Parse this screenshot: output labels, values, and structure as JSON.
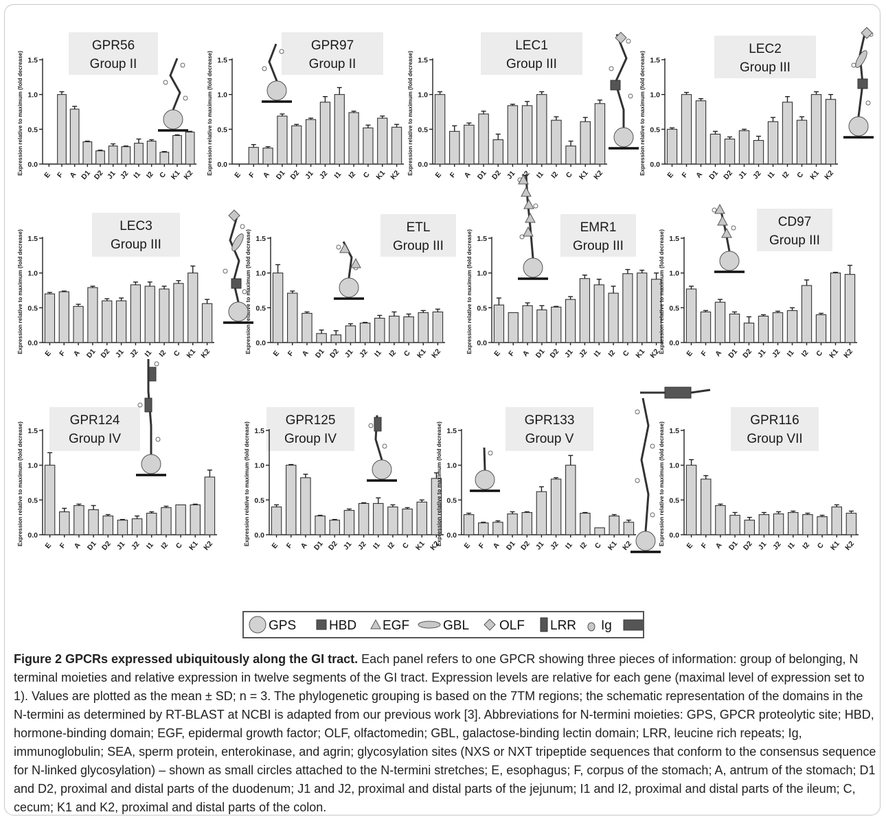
{
  "chart_data": [
    {
      "type": "bar",
      "title": "GPR56",
      "subtitle": "Group II",
      "categories": [
        "E",
        "F",
        "A",
        "D1",
        "D2",
        "J1",
        "J2",
        "I1",
        "I2",
        "C",
        "K1",
        "K2"
      ],
      "values": [
        0.0,
        1.0,
        0.79,
        0.32,
        0.19,
        0.26,
        0.25,
        0.3,
        0.33,
        0.17,
        0.41,
        0.46
      ],
      "errors": [
        0,
        0.04,
        0.04,
        0.01,
        0.01,
        0.03,
        0.01,
        0.06,
        0.02,
        0.01,
        0.01,
        0.01
      ],
      "ylabel": "Expression relative to maximum (fold decrease)",
      "ylim": [
        0,
        1.5
      ],
      "yticks": [
        "0.0",
        "0.5",
        "1.0",
        "1.5"
      ]
    },
    {
      "type": "bar",
      "title": "GPR97",
      "subtitle": "Group II",
      "categories": [
        "E",
        "F",
        "A",
        "D1",
        "D2",
        "J1",
        "J2",
        "I1",
        "I2",
        "C",
        "K1",
        "K2"
      ],
      "values": [
        0.0,
        0.24,
        0.23,
        0.69,
        0.55,
        0.64,
        0.89,
        1.0,
        0.74,
        0.52,
        0.66,
        0.53
      ],
      "errors": [
        0,
        0.04,
        0.02,
        0.03,
        0.02,
        0.02,
        0.08,
        0.1,
        0.02,
        0.04,
        0.03,
        0.04
      ],
      "ylabel": "Expression relative to maximum (fold decrease)",
      "ylim": [
        0,
        1.5
      ],
      "yticks": [
        "0.0",
        "0.5",
        "1.0",
        "1.5"
      ]
    },
    {
      "type": "bar",
      "title": "LEC1",
      "subtitle": "Group III",
      "categories": [
        "E",
        "F",
        "A",
        "D1",
        "D2",
        "J1",
        "J2",
        "I1",
        "I2",
        "C",
        "K1",
        "K2"
      ],
      "values": [
        1.0,
        0.47,
        0.56,
        0.72,
        0.35,
        0.84,
        0.84,
        1.0,
        0.63,
        0.26,
        0.61,
        0.87
      ],
      "errors": [
        0.04,
        0.08,
        0.03,
        0.04,
        0.08,
        0.02,
        0.06,
        0.04,
        0.05,
        0.07,
        0.06,
        0.05
      ],
      "ylabel": "Expression relative to maximum (fold decrease)",
      "ylim": [
        0,
        1.5
      ],
      "yticks": [
        "0.0",
        "0.5",
        "1.0",
        "1.5"
      ]
    },
    {
      "type": "bar",
      "title": "LEC2",
      "subtitle": "Group III",
      "categories": [
        "E",
        "F",
        "A",
        "D1",
        "D2",
        "J1",
        "J2",
        "I1",
        "I2",
        "C",
        "K1",
        "K2"
      ],
      "values": [
        0.5,
        1.0,
        0.91,
        0.43,
        0.36,
        0.48,
        0.34,
        0.61,
        0.89,
        0.63,
        1.0,
        0.93
      ],
      "errors": [
        0.02,
        0.03,
        0.03,
        0.04,
        0.03,
        0.02,
        0.06,
        0.06,
        0.08,
        0.05,
        0.04,
        0.07
      ],
      "ylabel": "Expression relative to maximum (fold decrease)",
      "ylim": [
        0,
        1.5
      ],
      "yticks": [
        "0.0",
        "0.5",
        "1.0",
        "1.5"
      ]
    },
    {
      "type": "bar",
      "title": "LEC3",
      "subtitle": "Group III",
      "categories": [
        "E",
        "F",
        "A",
        "D1",
        "D2",
        "J1",
        "J2",
        "I1",
        "I2",
        "C",
        "K1",
        "K2"
      ],
      "values": [
        0.7,
        0.73,
        0.52,
        0.79,
        0.6,
        0.6,
        0.83,
        0.81,
        0.77,
        0.85,
        1.0,
        0.56
      ],
      "errors": [
        0.02,
        0.01,
        0.03,
        0.02,
        0.03,
        0.04,
        0.04,
        0.06,
        0.04,
        0.04,
        0.1,
        0.06
      ],
      "ylabel": "Expression relative to maximum (fold decrease)",
      "ylim": [
        0,
        1.5
      ],
      "yticks": [
        "0.0",
        "0.5",
        "1.0",
        "1.5"
      ]
    },
    {
      "type": "bar",
      "title": "ETL",
      "subtitle": "Group III",
      "categories": [
        "E",
        "F",
        "A",
        "D1",
        "D2",
        "J1",
        "J2",
        "I1",
        "I2",
        "C",
        "K1",
        "K2"
      ],
      "values": [
        1.0,
        0.71,
        0.42,
        0.13,
        0.11,
        0.24,
        0.28,
        0.35,
        0.38,
        0.37,
        0.43,
        0.44
      ],
      "errors": [
        0.12,
        0.03,
        0.02,
        0.05,
        0.06,
        0.03,
        0.01,
        0.04,
        0.06,
        0.04,
        0.03,
        0.04
      ],
      "ylabel": "Expression relative to maximum (fold decrease)",
      "ylim": [
        0,
        1.5
      ],
      "yticks": [
        "0.0",
        "0.5",
        "1.0",
        "1.5"
      ]
    },
    {
      "type": "bar",
      "title": "EMR1",
      "subtitle": "Group III",
      "categories": [
        "E",
        "F",
        "A",
        "D1",
        "D2",
        "J1",
        "J2",
        "I1",
        "I2",
        "C",
        "K1",
        "K2"
      ],
      "values": [
        0.54,
        0.43,
        0.53,
        0.47,
        0.51,
        0.62,
        0.92,
        0.83,
        0.71,
        0.99,
        1.0,
        0.91
      ],
      "errors": [
        0.1,
        0.0,
        0.04,
        0.06,
        0.01,
        0.04,
        0.05,
        0.08,
        0.1,
        0.06,
        0.04,
        0.09
      ],
      "ylabel": "Expression relative to maximum (fold decrease)",
      "ylim": [
        0,
        1.5
      ],
      "yticks": [
        "0.0",
        "0.5",
        "1.0",
        "1.5"
      ]
    },
    {
      "type": "bar",
      "title": "CD97",
      "subtitle": "Group III",
      "categories": [
        "E",
        "F",
        "A",
        "D1",
        "D2",
        "J1",
        "J2",
        "I1",
        "I2",
        "C",
        "K1",
        "K2"
      ],
      "values": [
        0.77,
        0.44,
        0.58,
        0.41,
        0.28,
        0.38,
        0.43,
        0.46,
        0.82,
        0.4,
        1.0,
        0.98
      ],
      "errors": [
        0.04,
        0.02,
        0.04,
        0.03,
        0.09,
        0.02,
        0.02,
        0.04,
        0.08,
        0.02,
        0.01,
        0.13
      ],
      "ylabel": "Expression relative to maximum (fold decrease)",
      "ylim": [
        0,
        1.5
      ],
      "yticks": [
        "0.0",
        "0.5",
        "1.0",
        "1.5"
      ]
    },
    {
      "type": "bar",
      "title": "GPR124",
      "subtitle": "Group IV",
      "categories": [
        "E",
        "F",
        "A",
        "D1",
        "D2",
        "J1",
        "J2",
        "I1",
        "I2",
        "C",
        "K1",
        "K2"
      ],
      "values": [
        1.0,
        0.33,
        0.42,
        0.36,
        0.27,
        0.21,
        0.23,
        0.31,
        0.39,
        0.43,
        0.43,
        0.83
      ],
      "errors": [
        0.18,
        0.05,
        0.02,
        0.06,
        0.02,
        0.01,
        0.04,
        0.02,
        0.02,
        0.0,
        0.01,
        0.1
      ],
      "ylabel": "Expression relative to maximum (fold decrease)",
      "ylim": [
        0,
        1.5
      ],
      "yticks": [
        "0.0",
        "0.5",
        "1.0",
        "1.5"
      ]
    },
    {
      "type": "bar",
      "title": "GPR125",
      "subtitle": "Group IV",
      "categories": [
        "E",
        "F",
        "A",
        "D1",
        "D2",
        "J1",
        "J2",
        "I1",
        "I2",
        "C",
        "K1",
        "K2"
      ],
      "values": [
        0.4,
        1.0,
        0.82,
        0.27,
        0.21,
        0.35,
        0.45,
        0.45,
        0.4,
        0.37,
        0.47,
        0.81
      ],
      "errors": [
        0.03,
        0.01,
        0.05,
        0.01,
        0.01,
        0.02,
        0.01,
        0.08,
        0.03,
        0.02,
        0.03,
        0.08
      ],
      "ylabel": "Expression relative to maximum (fold decrease)",
      "ylim": [
        0,
        1.5
      ],
      "yticks": [
        "0.0",
        "0.5",
        "1.0",
        "1.5"
      ]
    },
    {
      "type": "bar",
      "title": "GPR133",
      "subtitle": "Group V",
      "categories": [
        "E",
        "F",
        "A",
        "D1",
        "D2",
        "J1",
        "J2",
        "I1",
        "I2",
        "C",
        "K1",
        "K2"
      ],
      "values": [
        0.29,
        0.17,
        0.18,
        0.3,
        0.32,
        0.62,
        0.8,
        1.0,
        0.31,
        0.1,
        0.27,
        0.18
      ],
      "errors": [
        0.02,
        0.01,
        0.02,
        0.03,
        0.01,
        0.07,
        0.02,
        0.14,
        0.01,
        0.0,
        0.02,
        0.03
      ],
      "ylabel": "Expression relative to maximum (fold decrease)",
      "ylim": [
        0,
        1.5
      ],
      "yticks": [
        "0.0",
        "0.5",
        "1.0",
        "1.5"
      ]
    },
    {
      "type": "bar",
      "title": "GPR116",
      "subtitle": "Group VII",
      "categories": [
        "E",
        "F",
        "A",
        "D1",
        "D2",
        "J1",
        "J2",
        "I1",
        "I2",
        "C",
        "K1",
        "K2"
      ],
      "values": [
        1.0,
        0.8,
        0.42,
        0.28,
        0.21,
        0.29,
        0.3,
        0.32,
        0.29,
        0.26,
        0.4,
        0.31
      ],
      "errors": [
        0.08,
        0.05,
        0.02,
        0.04,
        0.04,
        0.03,
        0.03,
        0.02,
        0.02,
        0.02,
        0.03,
        0.03
      ],
      "ylabel": "Expression relative to maximum (fold decrease)",
      "ylim": [
        0,
        1.5
      ],
      "yticks": [
        "0.0",
        "0.5",
        "1.0",
        "1.5"
      ]
    }
  ],
  "legend": {
    "items": [
      {
        "label": "GPS",
        "icon": "gps-circle-icon"
      },
      {
        "label": "HBD",
        "icon": "hbd-square-icon"
      },
      {
        "label": "EGF",
        "icon": "egf-triangle-icon"
      },
      {
        "label": "GBL",
        "icon": "gbl-lens-icon"
      },
      {
        "label": "OLF",
        "icon": "olf-diamond-icon"
      },
      {
        "label": "LRR",
        "icon": "lrr-rectangle-icon"
      },
      {
        "label": "Ig",
        "icon": "ig-oval-icon"
      },
      {
        "label": "SEA",
        "icon": "sea-bar-icon"
      },
      {
        "label": "Glycosylation site",
        "icon": "glycosylation-site-icon"
      }
    ]
  },
  "caption": {
    "bold": "Figure 2 GPCRs expressed ubiquitously along the GI tract.",
    "text": " Each panel refers to one GPCR showing three pieces of information: group of belonging, N terminal moieties and relative expression in twelve segments of the GI tract. Expression levels are relative for each gene (maximal level of expression set to 1). Values are plotted as the mean ± SD; n = 3. The phylogenetic grouping is based on the 7TM regions; the schematic representation of the domains in the N-termini as determined by RT-BLAST at NCBI is adapted from our previous work [3]. Abbreviations for N-termini moieties: GPS, GPCR proteolytic site; HBD, hormone-binding domain; EGF, epidermal growth factor; OLF, olfactomedin; GBL, galactose-binding lectin domain; LRR, leucine rich repeats; Ig, immunoglobulin; SEA, sperm protein, enterokinase, and agrin; glycosylation sites (NXS or NXT tripeptide sequences that conform to the consensus sequence for N-linked glycosylation) – shown as small circles attached to the N-termini stretches; E, esophagus; F, corpus of the stomach; A, antrum of the stomach; D1 and D2, proximal and distal parts of the duodenum; J1 and J2, proximal and distal parts of the jejunum; I1 and I2, proximal and distal parts of the ileum; C, cecum; K1 and K2, proximal and distal parts of the colon."
  }
}
